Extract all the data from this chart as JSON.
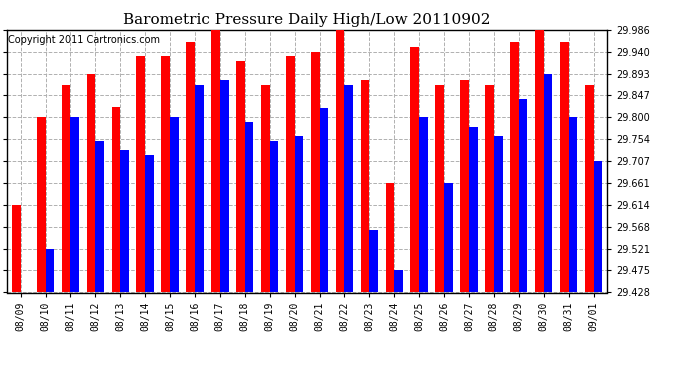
{
  "title": "Barometric Pressure Daily High/Low 20110902",
  "copyright": "Copyright 2011 Cartronics.com",
  "dates": [
    "08/09",
    "08/10",
    "08/11",
    "08/12",
    "08/13",
    "08/14",
    "08/15",
    "08/16",
    "08/17",
    "08/18",
    "08/19",
    "08/20",
    "08/21",
    "08/22",
    "08/23",
    "08/24",
    "08/25",
    "08/26",
    "08/27",
    "08/28",
    "08/29",
    "08/30",
    "08/31",
    "09/01"
  ],
  "highs": [
    29.614,
    29.8,
    29.87,
    29.893,
    29.822,
    29.93,
    29.93,
    29.96,
    29.986,
    29.92,
    29.87,
    29.93,
    29.94,
    29.993,
    29.88,
    29.66,
    29.95,
    29.87,
    29.88,
    29.87,
    29.96,
    29.993,
    29.96,
    29.87
  ],
  "lows": [
    29.428,
    29.521,
    29.8,
    29.75,
    29.73,
    29.72,
    29.8,
    29.87,
    29.88,
    29.79,
    29.75,
    29.76,
    29.82,
    29.87,
    29.56,
    29.475,
    29.8,
    29.66,
    29.78,
    29.76,
    29.84,
    29.893,
    29.8,
    29.707
  ],
  "high_color": "#ff0000",
  "low_color": "#0000ff",
  "bg_color": "#ffffff",
  "grid_color": "#b0b0b0",
  "ymin": 29.428,
  "ymax": 29.986,
  "yticks": [
    29.428,
    29.475,
    29.521,
    29.568,
    29.614,
    29.661,
    29.707,
    29.754,
    29.8,
    29.847,
    29.893,
    29.94,
    29.986
  ],
  "title_fontsize": 11,
  "copyright_fontsize": 7,
  "tick_fontsize": 7,
  "bar_width": 0.35
}
